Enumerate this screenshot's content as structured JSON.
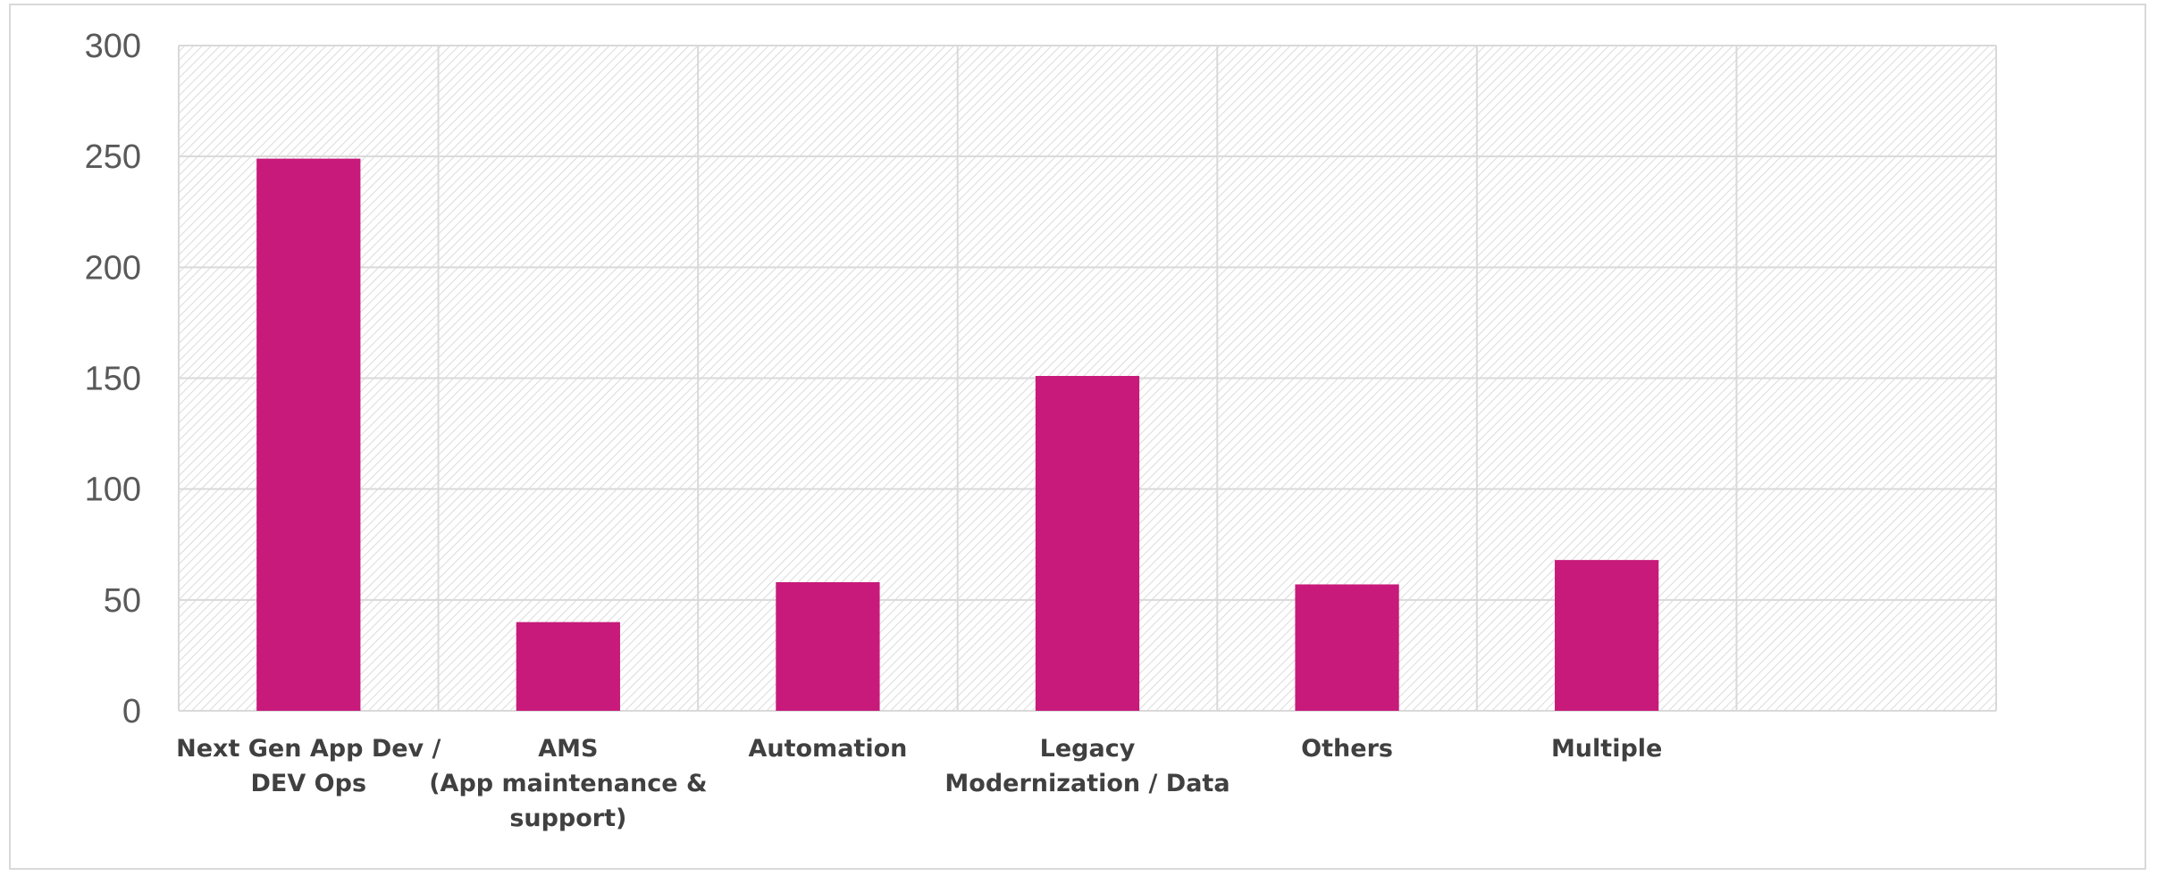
{
  "chart_data": {
    "type": "bar",
    "title": "",
    "xlabel": "",
    "ylabel": "",
    "ylim": [
      0,
      300
    ],
    "yticks": [
      0,
      50,
      100,
      150,
      200,
      250,
      300
    ],
    "grid": true,
    "legend": "none",
    "categories": [
      [
        "Next Gen App Dev /",
        "DEV Ops"
      ],
      [
        "AMS",
        "(App maintenance &",
        "support)"
      ],
      [
        "Automation"
      ],
      [
        "Legacy",
        "Modernization / Data"
      ],
      [
        "Others"
      ],
      [
        "Multiple"
      ],
      [
        ""
      ]
    ],
    "values": [
      249,
      40,
      58,
      151,
      57,
      68,
      null
    ],
    "colors": {
      "bar": "#c71a7a",
      "grid": "#d9d9d9",
      "hatch": "#d2d2d2",
      "tick_text": "#595959",
      "category_text": "#404040"
    }
  }
}
